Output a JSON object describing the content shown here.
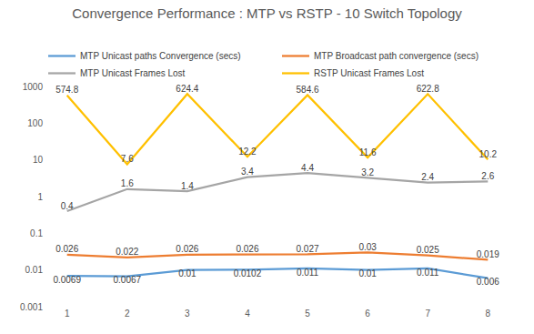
{
  "chart_data": {
    "type": "line",
    "title": "Convergence Performance : MTP vs RSTP - 10 Switch Topology",
    "categories": [
      "1",
      "2",
      "3",
      "4",
      "5",
      "6",
      "7",
      "8"
    ],
    "series": [
      {
        "name": "MTP Unicast paths Convergence (secs)",
        "color": "#5b9bd5",
        "values": [
          0.0069,
          0.0067,
          0.01,
          0.0102,
          0.011,
          0.01,
          0.011,
          0.006
        ]
      },
      {
        "name": "MTP Broadcast path convergence (secs)",
        "color": "#ed7d31",
        "values": [
          0.026,
          0.022,
          0.026,
          0.026,
          0.027,
          0.03,
          0.025,
          0.019
        ]
      },
      {
        "name": "MTP Unicast Frames Lost",
        "color": "#a5a5a5",
        "values": [
          0.4,
          1.6,
          1.4,
          3.4,
          4.4,
          3.2,
          2.4,
          2.6
        ]
      },
      {
        "name": "RSTP Unicast Frames Lost",
        "color": "#ffc000",
        "values": [
          574.8,
          7.6,
          624.4,
          12.2,
          584.6,
          11.6,
          622.8,
          10.2
        ]
      }
    ],
    "log": "y",
    "ylim": [
      0.001,
      1000
    ],
    "yticks": [
      0.001,
      0.01,
      0.1,
      1,
      10,
      100,
      1000
    ],
    "grid": false,
    "legend": "top",
    "data_labels": true
  }
}
